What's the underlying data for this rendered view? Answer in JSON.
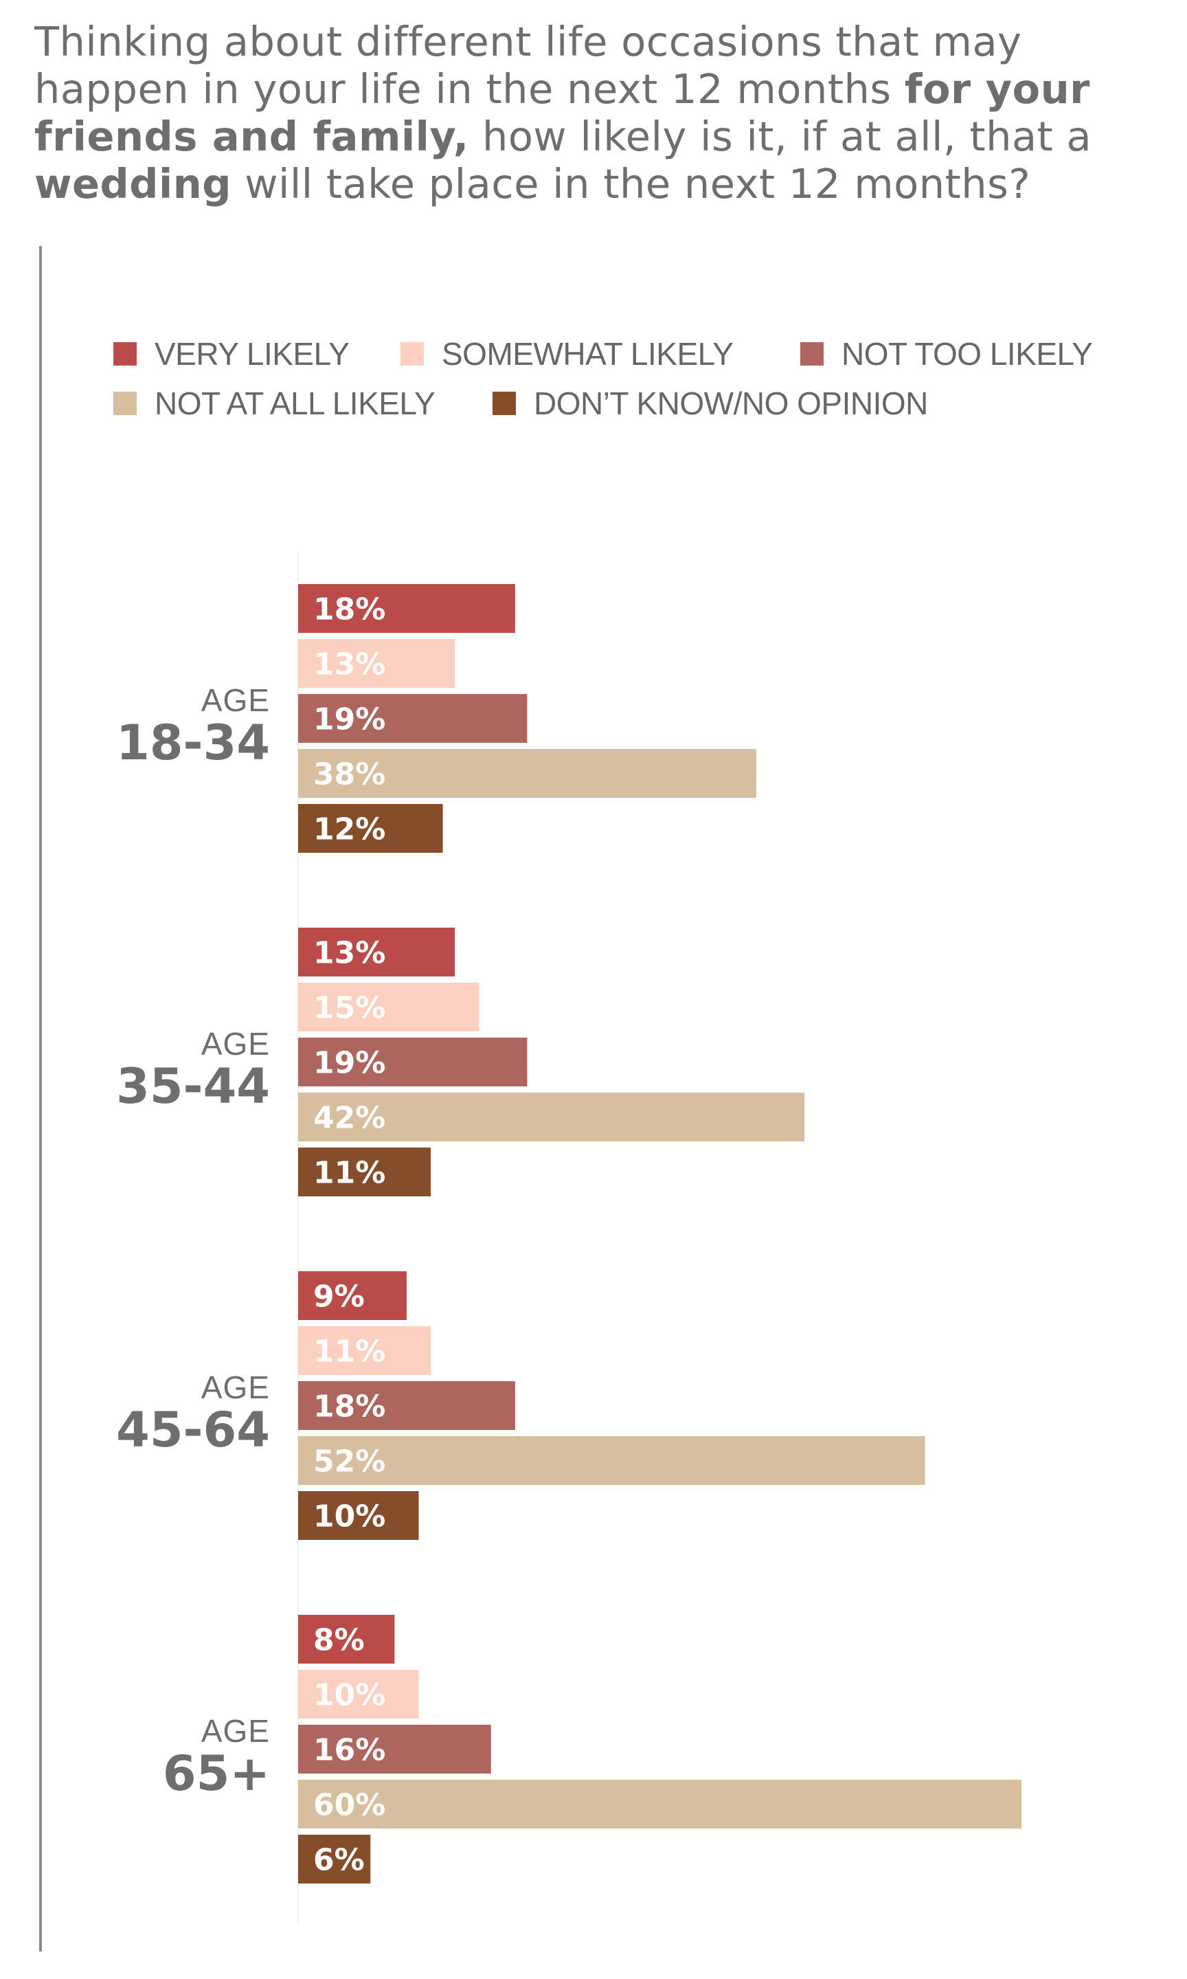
{
  "question": {
    "parts": [
      {
        "text": "Thinking about different life occasions that may happen in your life in the next 12 months ",
        "bold": false
      },
      {
        "text": "for your friends and family,",
        "bold": true
      },
      {
        "text": " how likely is it, if at all, that a ",
        "bold": false
      },
      {
        "text": "wedding",
        "bold": true
      },
      {
        "text": " will take place in the next 12 months?",
        "bold": false
      }
    ]
  },
  "chart_data": {
    "type": "bar",
    "orientation": "horizontal",
    "unit": "%",
    "categories": [
      "18-34",
      "35-44",
      "45-64",
      "65+"
    ],
    "category_prefix": "AGE",
    "series": [
      {
        "name": "VERY LIKELY",
        "color": "#bb4b48",
        "values": [
          18,
          13,
          9,
          8
        ]
      },
      {
        "name": "SOMEWHAT LIKELY",
        "color": "#fcd0c1",
        "values": [
          13,
          15,
          11,
          10
        ]
      },
      {
        "name": "NOT TOO LIKELY",
        "color": "#ae655e",
        "values": [
          19,
          19,
          18,
          16
        ]
      },
      {
        "name": "NOT AT ALL LIKELY",
        "color": "#d6be9f",
        "values": [
          38,
          42,
          52,
          60
        ]
      },
      {
        "name": "DON’T KNOW/NO OPINION",
        "color": "#864d2a",
        "values": [
          12,
          11,
          10,
          6
        ]
      }
    ],
    "legend_position": "top",
    "grid": false
  }
}
